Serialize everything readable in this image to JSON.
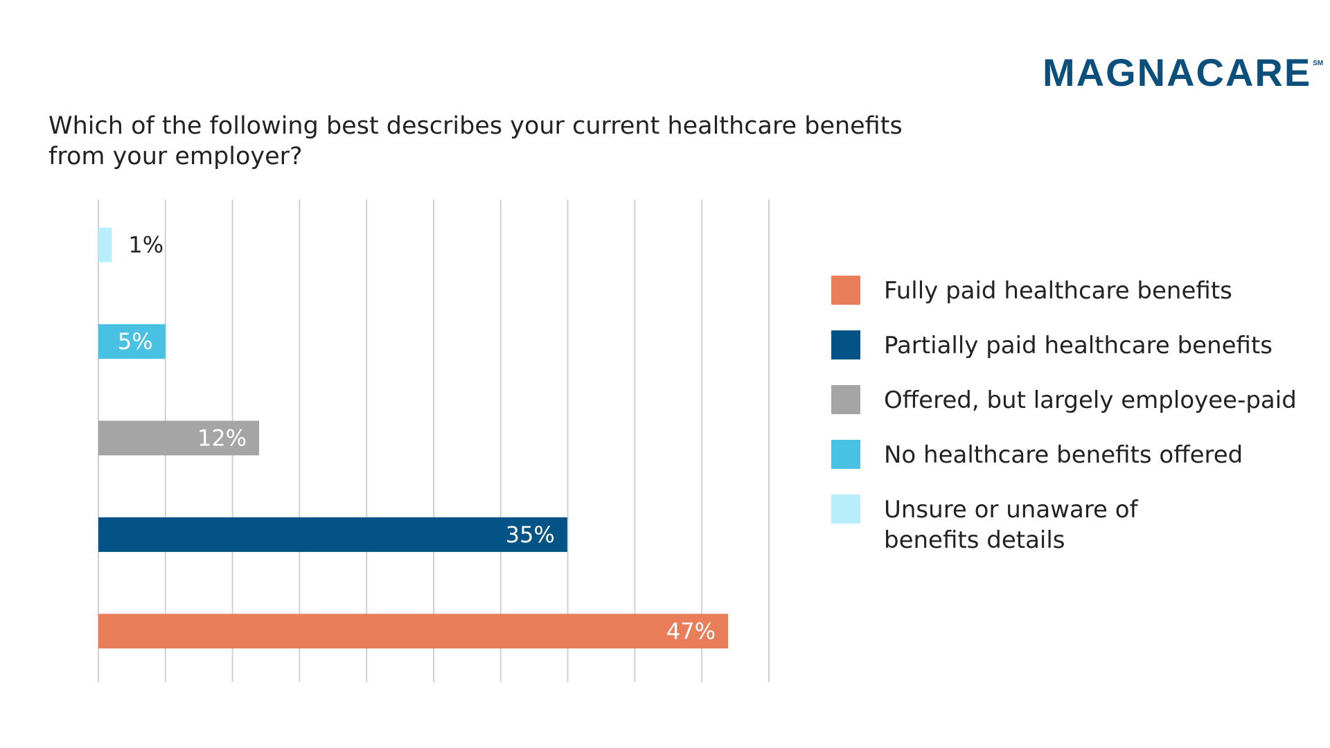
{
  "logo": {
    "text": "MAGNACARE",
    "mark": "SM",
    "color": "#0B4F7C"
  },
  "question": "Which of the following best describes your current healthcare benefits from your employer?",
  "chart_data": {
    "type": "bar",
    "orientation": "horizontal",
    "title": "",
    "xlabel": "",
    "ylabel": "",
    "xlim": [
      0,
      50
    ],
    "grid": true,
    "legend_position": "right",
    "categories": [
      "Unsure or unaware of benefits details",
      "No healthcare benefits offered",
      "Offered, but largely employee-paid",
      "Partially paid healthcare benefits",
      "Fully paid healthcare benefits"
    ],
    "values": [
      1,
      5,
      12,
      35,
      47
    ],
    "value_labels": [
      "1%",
      "5%",
      "12%",
      "35%",
      "47%"
    ],
    "colors": [
      "#B8EEFA",
      "#48C1E2",
      "#A5A5A5",
      "#045386",
      "#EB7E5A"
    ],
    "label_colors": [
      "#222222",
      "#FFFFFF",
      "#FFFFFF",
      "#FFFFFF",
      "#FFFFFF"
    ],
    "legend": [
      {
        "label": "Fully paid healthcare benefits",
        "color": "#EB7E5A"
      },
      {
        "label": "Partially paid healthcare benefits",
        "color": "#045386"
      },
      {
        "label": "Offered, but largely employee-paid",
        "color": "#A5A5A5"
      },
      {
        "label": "No healthcare benefits offered",
        "color": "#48C1E2"
      },
      {
        "label": "Unsure or unaware of benefits details",
        "color": "#B8EEFA"
      }
    ]
  }
}
